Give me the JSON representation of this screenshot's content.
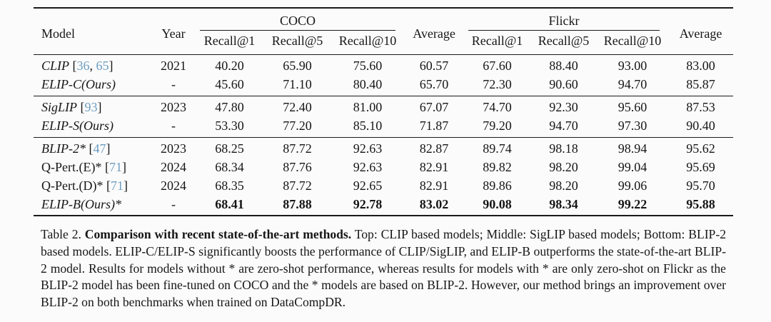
{
  "colors": {
    "background": "#fbfbfb",
    "text": "#161616",
    "rule": "#1a1a1a",
    "citation_link": "#6d9dc0"
  },
  "table_header": {
    "model": "Model",
    "year": "Year",
    "coco": "COCO",
    "flickr": "Flickr",
    "average_coco": "Average",
    "average_flickr": "Average",
    "recall_cols": [
      "Recall@1",
      "Recall@5",
      "Recall@10"
    ]
  },
  "table_groups": [
    {
      "name": "clip-based",
      "rows": [
        {
          "model": "CLIP",
          "italic": true,
          "citations": [
            "36",
            "65"
          ],
          "year": "2021",
          "bold_values": false,
          "values": [
            "40.20",
            "65.90",
            "75.60",
            "60.57",
            "67.60",
            "88.40",
            "93.00",
            "83.00"
          ]
        },
        {
          "model": "ELIP-C(Ours)",
          "italic": true,
          "citations": [],
          "year": "-",
          "bold_values": false,
          "values": [
            "45.60",
            "71.10",
            "80.40",
            "65.70",
            "72.30",
            "90.60",
            "94.70",
            "85.87"
          ]
        }
      ]
    },
    {
      "name": "siglip-based",
      "rows": [
        {
          "model": "SigLIP",
          "italic": true,
          "citations": [
            "93"
          ],
          "year": "2023",
          "bold_values": false,
          "values": [
            "47.80",
            "72.40",
            "81.00",
            "67.07",
            "74.70",
            "92.30",
            "95.60",
            "87.53"
          ]
        },
        {
          "model": "ELIP-S(Ours)",
          "italic": true,
          "citations": [],
          "year": "-",
          "bold_values": false,
          "values": [
            "53.30",
            "77.20",
            "85.10",
            "71.87",
            "79.20",
            "94.70",
            "97.30",
            "90.40"
          ]
        }
      ]
    },
    {
      "name": "blip2-based",
      "rows": [
        {
          "model": "BLIP-2*",
          "italic": true,
          "citations": [
            "47"
          ],
          "year": "2023",
          "bold_values": false,
          "values": [
            "68.25",
            "87.72",
            "92.63",
            "82.87",
            "89.74",
            "98.18",
            "98.94",
            "95.62"
          ]
        },
        {
          "model": "Q-Pert.(E)*",
          "italic": false,
          "citations": [
            "71"
          ],
          "year": "2024",
          "bold_values": false,
          "values": [
            "68.34",
            "87.76",
            "92.63",
            "82.91",
            "89.82",
            "98.20",
            "99.04",
            "95.69"
          ]
        },
        {
          "model": "Q-Pert.(D)*",
          "italic": false,
          "citations": [
            "71"
          ],
          "year": "2024",
          "bold_values": false,
          "values": [
            "68.35",
            "87.72",
            "92.65",
            "82.91",
            "89.86",
            "98.20",
            "99.06",
            "95.70"
          ]
        },
        {
          "model": "ELIP-B(Ours)*",
          "italic": true,
          "citations": [],
          "year": "-",
          "bold_values": true,
          "values": [
            "68.41",
            "87.88",
            "92.78",
            "83.02",
            "90.08",
            "98.34",
            "99.22",
            "95.88"
          ]
        }
      ]
    }
  ],
  "caption": {
    "label": "Table 2. ",
    "title": "Comparison with recent state-of-the-art methods.",
    "body": " Top: CLIP based models; Middle: SigLIP based models; Bottom: BLIP-2 based models. ELIP-C/ELIP-S significantly boosts the performance of CLIP/SigLIP, and ELIP-B outperforms the state-of-the-art BLIP-2 model. Results for models without * are zero-shot performance, whereas results for models with * are only zero-shot on Flickr as the BLIP-2 model has been fine-tuned on COCO and the * models are based on BLIP-2. However, our method brings an improvement over BLIP-2 on both benchmarks when trained on DataCompDR."
  }
}
